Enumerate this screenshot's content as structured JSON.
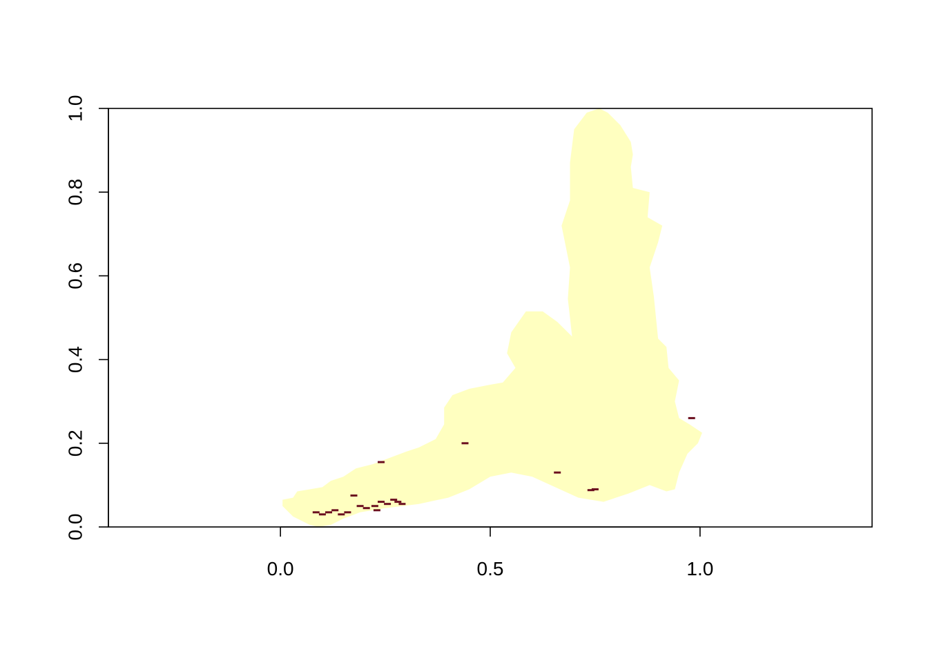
{
  "chart_data": {
    "type": "raster-map",
    "title": "",
    "xlabel": "",
    "ylabel": "",
    "xlim": [
      -0.41,
      1.41
    ],
    "ylim": [
      0.0,
      1.0
    ],
    "x_ticks": [
      {
        "value": 0.0,
        "label": "0.0"
      },
      {
        "value": 0.5,
        "label": "0.5"
      },
      {
        "value": 1.0,
        "label": "1.0"
      }
    ],
    "y_ticks": [
      {
        "value": 0.0,
        "label": "0.0"
      },
      {
        "value": 0.2,
        "label": "0.2"
      },
      {
        "value": 0.4,
        "label": "0.4"
      },
      {
        "value": 0.6,
        "label": "0.6"
      },
      {
        "value": 0.8,
        "label": "0.8"
      },
      {
        "value": 1.0,
        "label": "1.0"
      }
    ],
    "grid": false,
    "legend": "none",
    "colors": {
      "region_fill": "#FFFFC0",
      "high_value_cells": "#6B0F1F",
      "axis": "#000000"
    },
    "region_outline": [
      [
        0.005,
        0.065
      ],
      [
        0.03,
        0.07
      ],
      [
        0.04,
        0.085
      ],
      [
        0.07,
        0.09
      ],
      [
        0.1,
        0.095
      ],
      [
        0.12,
        0.11
      ],
      [
        0.15,
        0.12
      ],
      [
        0.18,
        0.14
      ],
      [
        0.22,
        0.15
      ],
      [
        0.26,
        0.165
      ],
      [
        0.3,
        0.18
      ],
      [
        0.33,
        0.19
      ],
      [
        0.37,
        0.21
      ],
      [
        0.39,
        0.245
      ],
      [
        0.39,
        0.285
      ],
      [
        0.41,
        0.315
      ],
      [
        0.45,
        0.33
      ],
      [
        0.5,
        0.34
      ],
      [
        0.53,
        0.345
      ],
      [
        0.56,
        0.38
      ],
      [
        0.54,
        0.415
      ],
      [
        0.55,
        0.465
      ],
      [
        0.585,
        0.515
      ],
      [
        0.625,
        0.515
      ],
      [
        0.66,
        0.49
      ],
      [
        0.695,
        0.455
      ],
      [
        0.69,
        0.5
      ],
      [
        0.685,
        0.545
      ],
      [
        0.69,
        0.62
      ],
      [
        0.68,
        0.67
      ],
      [
        0.67,
        0.72
      ],
      [
        0.69,
        0.78
      ],
      [
        0.69,
        0.87
      ],
      [
        0.7,
        0.95
      ],
      [
        0.73,
        0.99
      ],
      [
        0.76,
        1.0
      ],
      [
        0.78,
        0.99
      ],
      [
        0.81,
        0.96
      ],
      [
        0.835,
        0.92
      ],
      [
        0.84,
        0.89
      ],
      [
        0.835,
        0.86
      ],
      [
        0.84,
        0.81
      ],
      [
        0.88,
        0.8
      ],
      [
        0.875,
        0.74
      ],
      [
        0.91,
        0.72
      ],
      [
        0.9,
        0.68
      ],
      [
        0.88,
        0.62
      ],
      [
        0.89,
        0.55
      ],
      [
        0.9,
        0.45
      ],
      [
        0.92,
        0.43
      ],
      [
        0.925,
        0.38
      ],
      [
        0.95,
        0.35
      ],
      [
        0.94,
        0.3
      ],
      [
        0.95,
        0.26
      ],
      [
        0.975,
        0.245
      ],
      [
        1.005,
        0.225
      ],
      [
        0.995,
        0.2
      ],
      [
        0.97,
        0.175
      ],
      [
        0.95,
        0.13
      ],
      [
        0.94,
        0.09
      ],
      [
        0.92,
        0.085
      ],
      [
        0.88,
        0.1
      ],
      [
        0.83,
        0.08
      ],
      [
        0.77,
        0.06
      ],
      [
        0.71,
        0.07
      ],
      [
        0.6,
        0.12
      ],
      [
        0.55,
        0.13
      ],
      [
        0.5,
        0.12
      ],
      [
        0.45,
        0.09
      ],
      [
        0.4,
        0.07
      ],
      [
        0.33,
        0.055
      ],
      [
        0.25,
        0.045
      ],
      [
        0.19,
        0.035
      ],
      [
        0.15,
        0.02
      ],
      [
        0.12,
        0.005
      ],
      [
        0.09,
        0.0
      ],
      [
        0.07,
        0.005
      ],
      [
        0.03,
        0.025
      ],
      [
        0.005,
        0.05
      ]
    ],
    "highlight_cells": [
      [
        0.085,
        0.035
      ],
      [
        0.1,
        0.03
      ],
      [
        0.115,
        0.035
      ],
      [
        0.13,
        0.04
      ],
      [
        0.145,
        0.03
      ],
      [
        0.16,
        0.035
      ],
      [
        0.19,
        0.05
      ],
      [
        0.205,
        0.045
      ],
      [
        0.225,
        0.05
      ],
      [
        0.24,
        0.06
      ],
      [
        0.255,
        0.055
      ],
      [
        0.27,
        0.065
      ],
      [
        0.28,
        0.06
      ],
      [
        0.29,
        0.055
      ],
      [
        0.23,
        0.04
      ],
      [
        0.75,
        0.09
      ],
      [
        0.74,
        0.088
      ],
      [
        0.66,
        0.13
      ],
      [
        0.98,
        0.26
      ],
      [
        0.175,
        0.075
      ],
      [
        0.44,
        0.2
      ],
      [
        0.24,
        0.155
      ]
    ]
  }
}
